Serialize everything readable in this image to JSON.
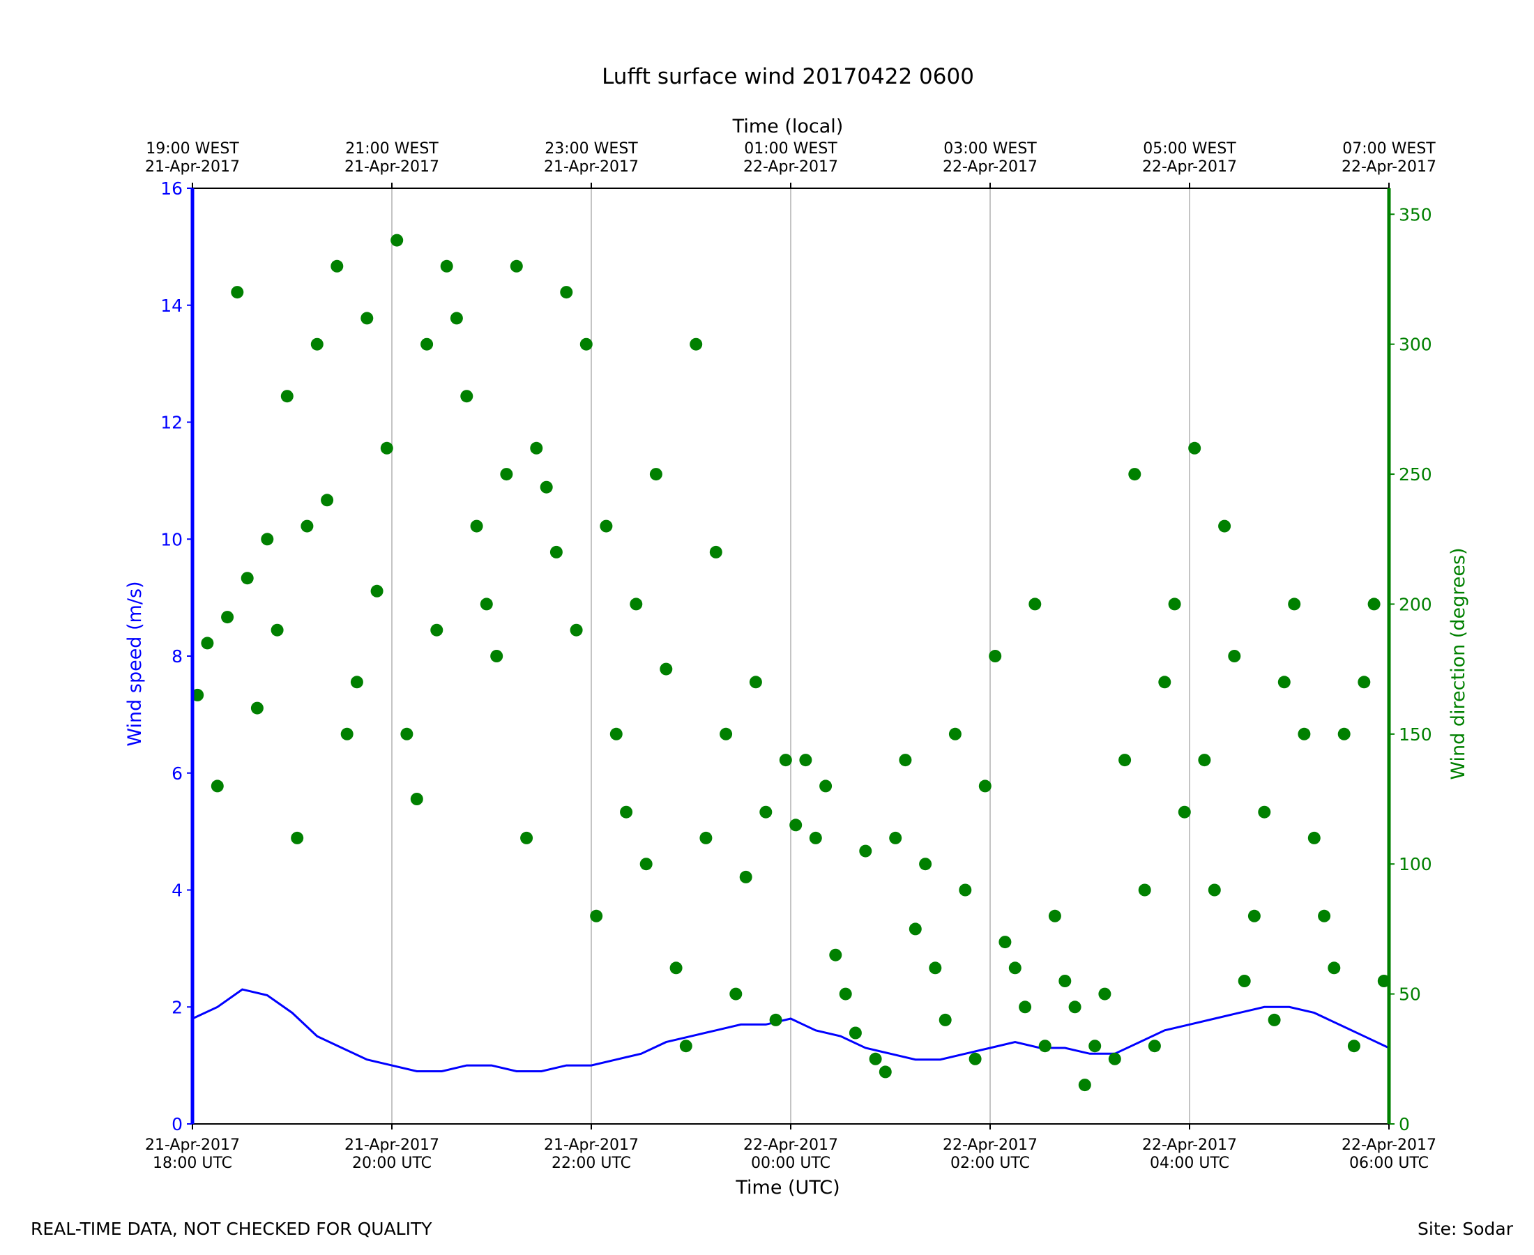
{
  "chart_data": {
    "type": "line",
    "title": "Lufft surface wind 20170422 0600",
    "xlabel_bottom": "Time (UTC)",
    "xlabel_top": "Time (local)",
    "ylabel_left": "Wind speed (m/s)",
    "ylabel_right": "Wind direction (degrees)",
    "x_range_utc_hours": [
      18,
      30
    ],
    "ylim_left": [
      0,
      16
    ],
    "ylim_right": [
      0,
      360
    ],
    "grid": "vertical lines at major x ticks",
    "colors": {
      "speed": "#0000ff",
      "direction": "#008000",
      "axis": "#000000",
      "grid": "#b0b0b0"
    },
    "bottom_ticks": [
      {
        "line1": "21-Apr-2017",
        "line2": "18:00 UTC"
      },
      {
        "line1": "21-Apr-2017",
        "line2": "20:00 UTC"
      },
      {
        "line1": "21-Apr-2017",
        "line2": "22:00 UTC"
      },
      {
        "line1": "22-Apr-2017",
        "line2": "00:00 UTC"
      },
      {
        "line1": "22-Apr-2017",
        "line2": "02:00 UTC"
      },
      {
        "line1": "22-Apr-2017",
        "line2": "04:00 UTC"
      },
      {
        "line1": "22-Apr-2017",
        "line2": "06:00 UTC"
      }
    ],
    "top_ticks": [
      {
        "line1": "19:00 WEST",
        "line2": "21-Apr-2017"
      },
      {
        "line1": "21:00 WEST",
        "line2": "21-Apr-2017"
      },
      {
        "line1": "23:00 WEST",
        "line2": "21-Apr-2017"
      },
      {
        "line1": "01:00 WEST",
        "line2": "22-Apr-2017"
      },
      {
        "line1": "03:00 WEST",
        "line2": "22-Apr-2017"
      },
      {
        "line1": "05:00 WEST",
        "line2": "22-Apr-2017"
      },
      {
        "line1": "07:00 WEST",
        "line2": "22-Apr-2017"
      }
    ],
    "left_ticks": [
      0,
      2,
      4,
      6,
      8,
      10,
      12,
      14,
      16
    ],
    "right_ticks": [
      0,
      50,
      100,
      150,
      200,
      250,
      300,
      350
    ],
    "series": [
      {
        "name": "Wind speed",
        "axis": "left",
        "style": "line",
        "x_utc_hours": [
          18.0,
          18.25,
          18.5,
          18.75,
          19.0,
          19.25,
          19.5,
          19.75,
          20.0,
          20.25,
          20.5,
          20.75,
          21.0,
          21.25,
          21.5,
          21.75,
          22.0,
          22.25,
          22.5,
          22.75,
          23.0,
          23.25,
          23.5,
          23.75,
          24.0,
          24.25,
          24.5,
          24.75,
          25.0,
          25.25,
          25.5,
          25.75,
          26.0,
          26.25,
          26.5,
          26.75,
          27.0,
          27.25,
          27.5,
          27.75,
          28.0,
          28.25,
          28.5,
          28.75,
          29.0,
          29.25,
          29.5,
          29.75,
          30.0
        ],
        "values": [
          1.8,
          2.0,
          2.3,
          2.2,
          1.9,
          1.5,
          1.3,
          1.1,
          1.0,
          0.9,
          0.9,
          1.0,
          1.0,
          0.9,
          0.9,
          1.0,
          1.0,
          1.1,
          1.2,
          1.4,
          1.5,
          1.6,
          1.7,
          1.7,
          1.8,
          1.6,
          1.5,
          1.3,
          1.2,
          1.1,
          1.1,
          1.2,
          1.3,
          1.4,
          1.3,
          1.3,
          1.2,
          1.2,
          1.4,
          1.6,
          1.7,
          1.8,
          1.9,
          2.0,
          2.0,
          1.9,
          1.7,
          1.5,
          1.3
        ]
      },
      {
        "name": "Wind direction",
        "axis": "right",
        "style": "scatter",
        "x_utc_hours": [
          18.05,
          18.15,
          18.25,
          18.35,
          18.45,
          18.55,
          18.65,
          18.75,
          18.85,
          18.95,
          19.05,
          19.15,
          19.25,
          19.35,
          19.45,
          19.55,
          19.65,
          19.75,
          19.85,
          19.95,
          20.05,
          20.15,
          20.25,
          20.35,
          20.45,
          20.55,
          20.65,
          20.75,
          20.85,
          20.95,
          21.05,
          21.15,
          21.25,
          21.35,
          21.45,
          21.55,
          21.65,
          21.75,
          21.85,
          21.95,
          22.05,
          22.15,
          22.25,
          22.35,
          22.45,
          22.55,
          22.65,
          22.75,
          22.85,
          22.95,
          23.05,
          23.15,
          23.25,
          23.35,
          23.45,
          23.55,
          23.65,
          23.75,
          23.85,
          23.95,
          24.05,
          24.15,
          24.25,
          24.35,
          24.45,
          24.55,
          24.65,
          24.75,
          24.85,
          24.95,
          25.05,
          25.15,
          25.25,
          25.35,
          25.45,
          25.55,
          25.65,
          25.75,
          25.85,
          25.95,
          26.05,
          26.15,
          26.25,
          26.35,
          26.45,
          26.55,
          26.65,
          26.75,
          26.85,
          26.95,
          27.05,
          27.15,
          27.25,
          27.35,
          27.45,
          27.55,
          27.65,
          27.75,
          27.85,
          27.95,
          28.05,
          28.15,
          28.25,
          28.35,
          28.45,
          28.55,
          28.65,
          28.75,
          28.85,
          28.95,
          29.05,
          29.15,
          29.25,
          29.35,
          29.45,
          29.55,
          29.65,
          29.75,
          29.85,
          29.95
        ],
        "values": [
          165,
          185,
          130,
          195,
          320,
          210,
          160,
          225,
          190,
          280,
          110,
          230,
          300,
          240,
          330,
          150,
          170,
          310,
          205,
          260,
          340,
          150,
          125,
          300,
          190,
          330,
          310,
          280,
          230,
          200,
          180,
          250,
          330,
          110,
          260,
          245,
          220,
          320,
          190,
          300,
          80,
          230,
          150,
          120,
          200,
          100,
          250,
          175,
          60,
          30,
          300,
          110,
          220,
          150,
          50,
          95,
          170,
          120,
          40,
          140,
          115,
          140,
          110,
          130,
          65,
          50,
          35,
          105,
          25,
          20,
          110,
          140,
          75,
          100,
          60,
          40,
          150,
          90,
          25,
          130,
          180,
          70,
          60,
          45,
          200,
          30,
          80,
          55,
          45,
          15,
          30,
          50,
          25,
          140,
          250,
          90,
          30,
          170,
          200,
          120,
          260,
          140,
          90,
          230,
          180,
          55,
          80,
          120,
          40,
          170,
          200,
          150,
          110,
          80,
          60,
          150,
          30,
          170,
          200,
          55
        ]
      }
    ]
  },
  "footer": {
    "left": "REAL-TIME DATA, NOT CHECKED FOR QUALITY",
    "right": "Site: Sodar"
  }
}
